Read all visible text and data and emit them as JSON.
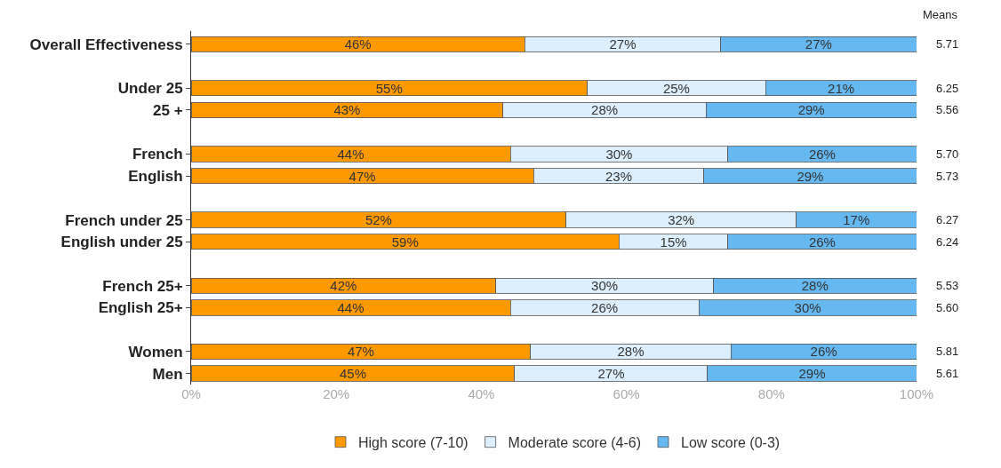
{
  "chart_data": {
    "type": "bar",
    "orientation": "horizontal",
    "stacked": true,
    "categories": [
      "Overall Effectiveness",
      null,
      "Under 25",
      "25 +",
      null,
      "French",
      "English",
      null,
      "French under 25",
      "English under 25",
      null,
      "French 25+",
      "English 25+",
      null,
      "Women",
      "Men"
    ],
    "series": [
      {
        "name": "High score (7-10)",
        "color": "#ff9900",
        "values": [
          46,
          null,
          54.6,
          43,
          null,
          44,
          47.2,
          null,
          51.7,
          59,
          null,
          42,
          44,
          null,
          46.8,
          44.6
        ],
        "value_labels": [
          "46%",
          null,
          "55%",
          "43%",
          null,
          "44%",
          "47%",
          null,
          "52%",
          "59%",
          null,
          "42%",
          "44%",
          null,
          "47%",
          "45%"
        ]
      },
      {
        "name": "Moderate score (4-6)",
        "color": "#ddeefc",
        "values": [
          27,
          null,
          24.6,
          28,
          null,
          30,
          23.5,
          null,
          31.7,
          15,
          null,
          30,
          26,
          null,
          27.6,
          26.6
        ],
        "value_labels": [
          "27%",
          null,
          "25%",
          "28%",
          null,
          "30%",
          "23%",
          null,
          "32%",
          "15%",
          null,
          "30%",
          "26%",
          null,
          "28%",
          "27%"
        ]
      },
      {
        "name": "Low score (0-3)",
        "color": "#66b8f0",
        "values": [
          27,
          null,
          20.8,
          29,
          null,
          26,
          29.3,
          null,
          16.6,
          26,
          null,
          28,
          30,
          null,
          25.6,
          28.8
        ],
        "value_labels": [
          "27%",
          null,
          "21%",
          "29%",
          null,
          "26%",
          "29%",
          null,
          "17%",
          "26%",
          null,
          "28%",
          "30%",
          null,
          "26%",
          "29%"
        ]
      }
    ],
    "xlim": [
      0,
      100
    ],
    "xticks": [
      {
        "value": 0,
        "label": "0%"
      },
      {
        "value": 20,
        "label": "20%"
      },
      {
        "value": 40,
        "label": "40%"
      },
      {
        "value": 60,
        "label": "60%"
      },
      {
        "value": 80,
        "label": "80%"
      },
      {
        "value": 100,
        "label": "100%"
      }
    ],
    "annotations": [
      "Means",
      "5.71",
      "6.25",
      "5.56",
      "5.70",
      "5.73",
      "6.27",
      "6.24",
      "5.53",
      "5.60",
      "5.81",
      "5.61"
    ],
    "legend": "bottom"
  }
}
